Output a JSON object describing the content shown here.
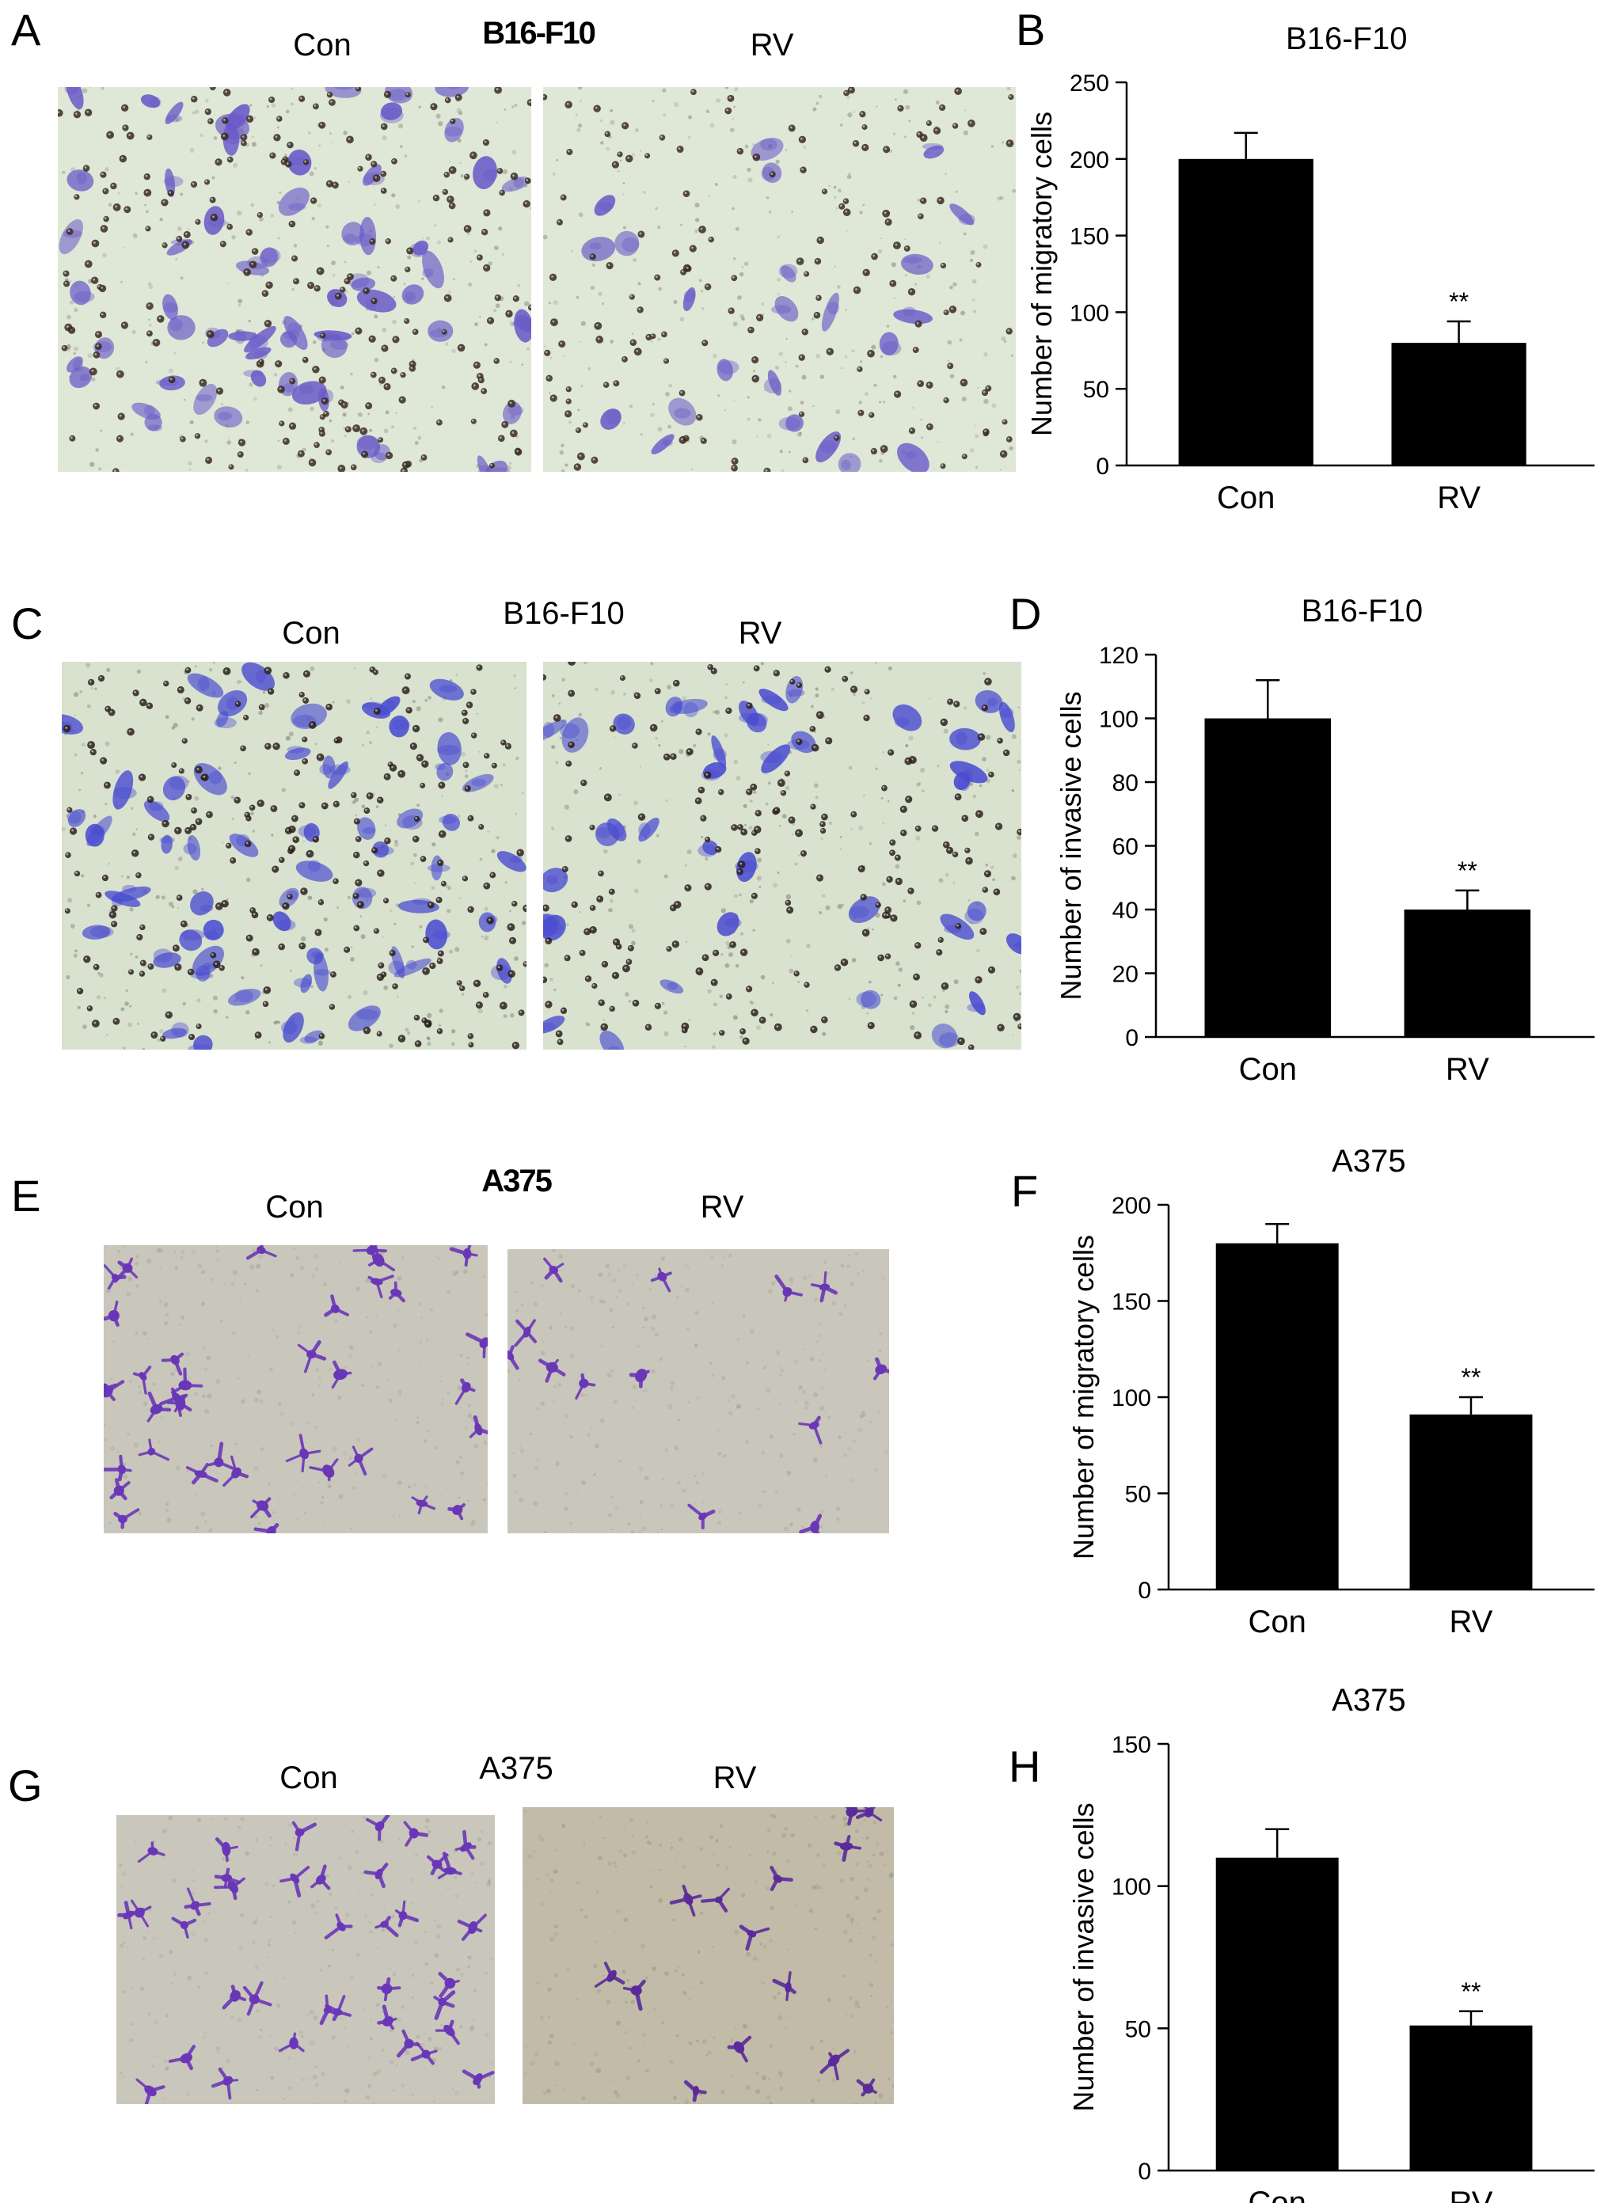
{
  "cell_lines": {
    "b16": "B16-F10",
    "a375": "A375"
  },
  "panels": {
    "A": {
      "letter": "A",
      "con_label": "Con",
      "rv_label": "RV",
      "title": "B16-F10"
    },
    "C": {
      "letter": "C",
      "con_label": "Con",
      "rv_label": "RV",
      "title": "B16-F10"
    },
    "E": {
      "letter": "E",
      "con_label": "Con",
      "rv_label": "RV",
      "title": "A375"
    },
    "G": {
      "letter": "G",
      "con_label": "Con",
      "rv_label": "RV",
      "title": "A375"
    }
  },
  "stain_colors": {
    "background_b16": "#dfe8d6",
    "cells_b16": "#6a5ac8",
    "nuclei": "#3a2a22",
    "background_a375": "#c9c6bb",
    "cells_a375": "#6a36b8"
  },
  "chart_data": [
    {
      "panel": "B",
      "type": "bar",
      "title": "B16-F10",
      "categories": [
        "Con",
        "RV"
      ],
      "values": [
        200,
        80
      ],
      "errors": [
        17,
        14
      ],
      "significance": [
        "",
        "**"
      ],
      "ylabel": "Number of migratory cells",
      "ylim": [
        0,
        250
      ],
      "yticks": [
        0,
        50,
        100,
        150,
        200,
        250
      ],
      "bar_color": "#000000"
    },
    {
      "panel": "D",
      "type": "bar",
      "title": "B16-F10",
      "categories": [
        "Con",
        "RV"
      ],
      "values": [
        100,
        40
      ],
      "errors": [
        12,
        6
      ],
      "significance": [
        "",
        "**"
      ],
      "ylabel": "Number of invasive cells",
      "ylim": [
        0,
        120
      ],
      "yticks": [
        0,
        20,
        40,
        60,
        80,
        100,
        120
      ],
      "bar_color": "#000000"
    },
    {
      "panel": "F",
      "type": "bar",
      "title": "A375",
      "categories": [
        "Con",
        "RV"
      ],
      "values": [
        180,
        91
      ],
      "errors": [
        10,
        9
      ],
      "significance": [
        "",
        "**"
      ],
      "ylabel": "Number of migratory cells",
      "ylim": [
        0,
        200
      ],
      "yticks": [
        0,
        50,
        100,
        150,
        200
      ],
      "bar_color": "#000000"
    },
    {
      "panel": "H",
      "type": "bar",
      "title": "A375",
      "categories": [
        "Con",
        "RV"
      ],
      "values": [
        110,
        51
      ],
      "errors": [
        10,
        5
      ],
      "significance": [
        "",
        "**"
      ],
      "ylabel": "Number of invasive cells",
      "ylim": [
        0,
        150
      ],
      "yticks": [
        0,
        50,
        100,
        150
      ],
      "bar_color": "#000000"
    }
  ]
}
